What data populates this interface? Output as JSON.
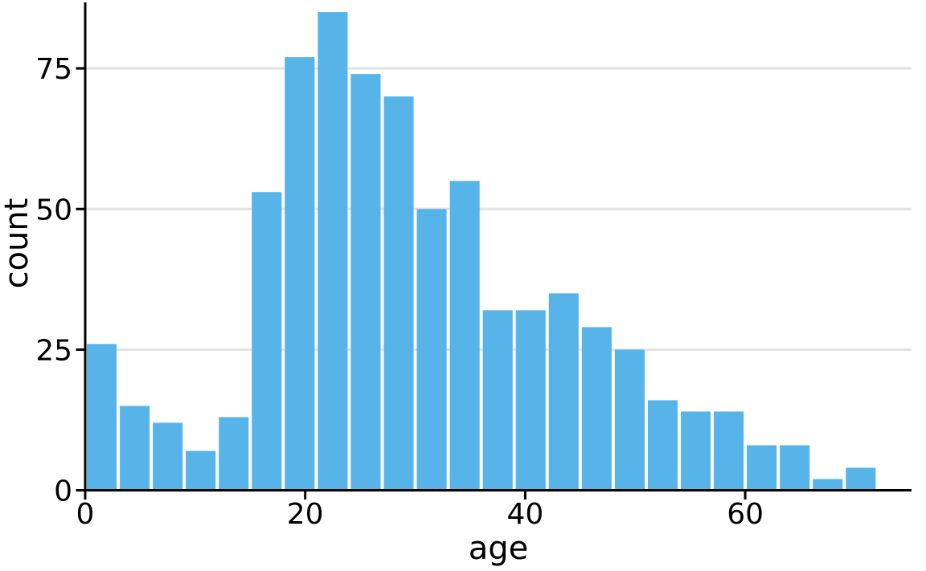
{
  "chart_data": {
    "type": "bar",
    "subtype": "histogram",
    "title": "",
    "xlabel": "age",
    "ylabel": "count",
    "bin_edges": [
      0,
      3,
      6,
      9,
      12,
      15,
      18,
      21,
      24,
      27,
      30,
      33,
      36,
      39,
      42,
      45,
      48,
      51,
      54,
      57,
      60,
      63,
      66,
      69,
      72
    ],
    "values": [
      26,
      15,
      12,
      7,
      13,
      53,
      77,
      85,
      74,
      70,
      50,
      55,
      32,
      32,
      35,
      29,
      25,
      16,
      14,
      14,
      8,
      8,
      2,
      4
    ],
    "x_ticks": [
      0,
      20,
      40,
      60
    ],
    "y_ticks": [
      0,
      25,
      50,
      75
    ],
    "xlim": [
      0,
      75.2
    ],
    "ylim": [
      0,
      86.5
    ],
    "grid": "horizontal",
    "legend": "none",
    "bar_color": "#56B4E9",
    "bar_edge_color": "#FFFFFF",
    "axis_color": "#000000",
    "grid_color": "#E2E2E2",
    "text_color": "#000000",
    "background_color": "#FFFFFF"
  }
}
